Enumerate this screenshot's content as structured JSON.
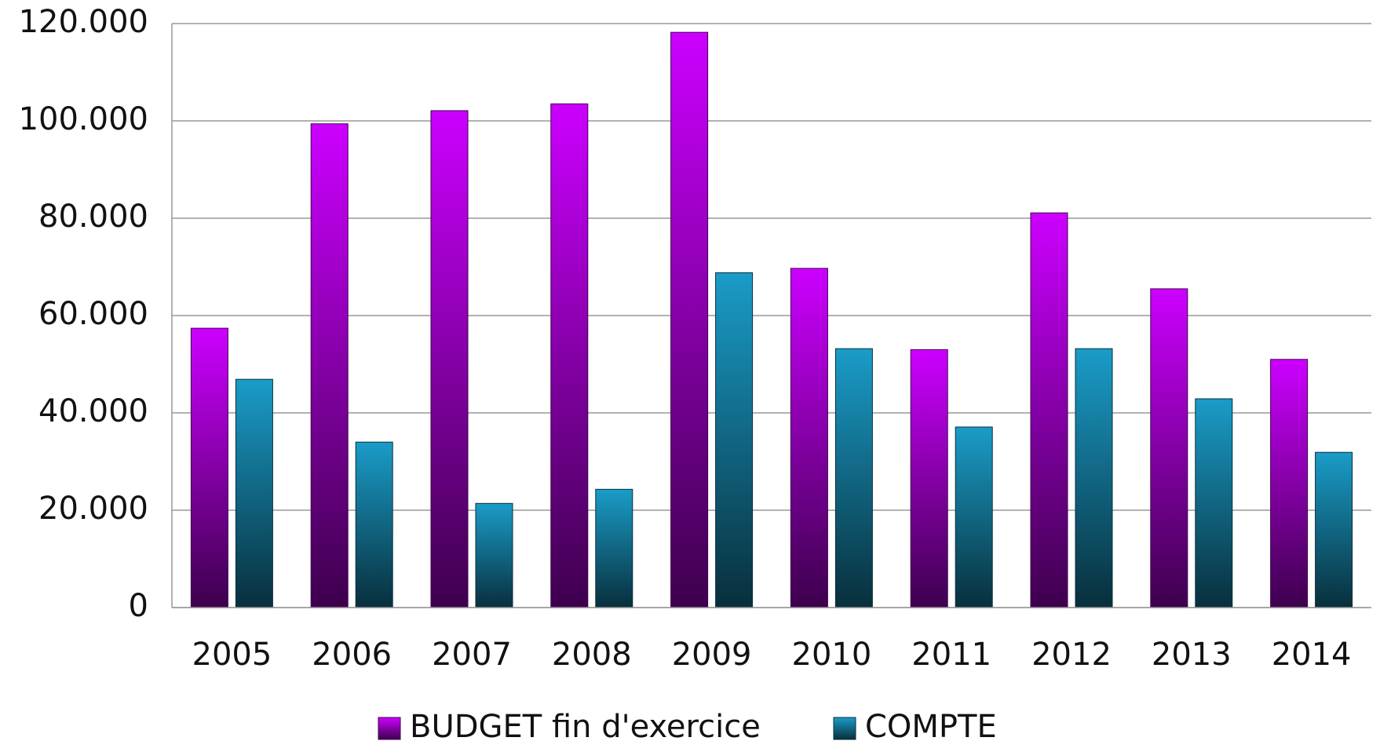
{
  "chart_data": {
    "type": "bar",
    "categories": [
      "2005",
      "2006",
      "2007",
      "2008",
      "2009",
      "2010",
      "2011",
      "2012",
      "2013",
      "2014"
    ],
    "series": [
      {
        "name": "BUDGET fin d'exercice",
        "color": "#cc00ff",
        "values": [
          57400,
          99400,
          102100,
          103500,
          118200,
          69700,
          53000,
          81100,
          65500,
          51000
        ]
      },
      {
        "name": "COMPTE",
        "color": "#1a9cc8",
        "values": [
          46900,
          34000,
          21400,
          24300,
          68800,
          53200,
          37100,
          53200,
          42900,
          31900
        ]
      }
    ],
    "ylim": [
      0,
      120000
    ],
    "yticks": [
      0,
      {
        "value": 20000,
        "label": "20.000"
      },
      {
        "value": 40000,
        "label": "40.000"
      },
      {
        "value": 60000,
        "label": "60.000"
      },
      {
        "value": 80000,
        "label": "80.000"
      },
      {
        "value": 100000,
        "label": "100.000"
      },
      {
        "value": 120000,
        "label": "120.000"
      }
    ],
    "grid": true,
    "legend": "bottom"
  }
}
